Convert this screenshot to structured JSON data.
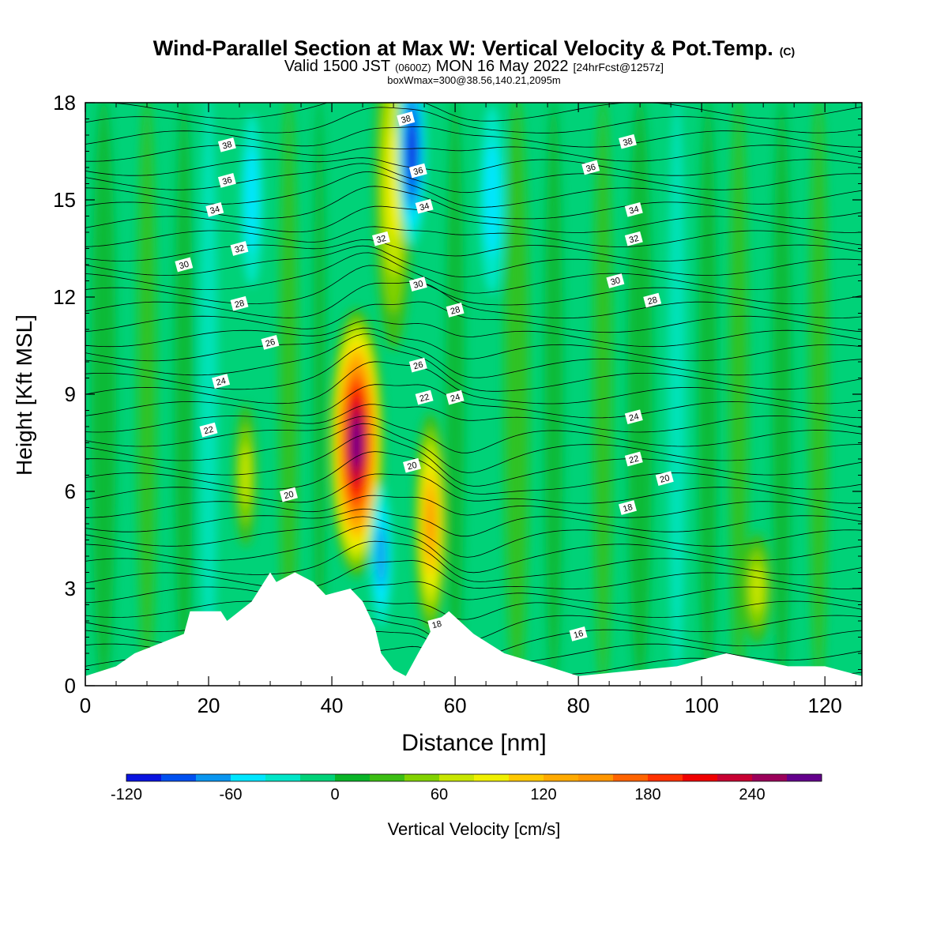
{
  "title": {
    "main": "Wind-Parallel Section at Max W: Vertical Velocity & Pot.Temp.",
    "copyright": "(C)",
    "valid_prefix": "Valid 1500 JST",
    "valid_z": "(0600Z)",
    "valid_date": "MON 16 May 2022",
    "fcst": "[24hrFcst@1257z]",
    "box": "boxWmax=300@38.56,140.21,2095m"
  },
  "chart_data": {
    "type": "heatmap",
    "xlabel": "Distance [nm]",
    "ylabel": "Height [Kft MSL]",
    "xlim": [
      0,
      126
    ],
    "ylim": [
      0,
      18
    ],
    "xticks": [
      "0",
      "20",
      "40",
      "60",
      "80",
      "100",
      "120"
    ],
    "xtick_values": [
      0,
      20,
      40,
      60,
      80,
      100,
      120
    ],
    "yticks": [
      "0",
      "3",
      "6",
      "9",
      "12",
      "15",
      "18"
    ],
    "ytick_values": [
      0,
      3,
      6,
      9,
      12,
      15,
      18
    ],
    "colorbar": {
      "label": "Vertical Velocity [cm/s]",
      "tick_labels": [
        "-120",
        "-60",
        "0",
        "60",
        "120",
        "180",
        "240"
      ],
      "tick_values": [
        -120,
        -60,
        0,
        60,
        120,
        180,
        240
      ],
      "bins": [
        -120,
        -100,
        -80,
        -60,
        -40,
        -20,
        0,
        20,
        40,
        60,
        80,
        100,
        120,
        140,
        160,
        180,
        200,
        220,
        240,
        260,
        280
      ],
      "colors": [
        "#0a14e0",
        "#0050f0",
        "#0a96f0",
        "#00e6ff",
        "#00e6c8",
        "#00d278",
        "#0ab428",
        "#3cbe14",
        "#82d200",
        "#c8e600",
        "#f0f000",
        "#ffc800",
        "#ffaa00",
        "#ff9600",
        "#ff6400",
        "#ff3200",
        "#f00000",
        "#c80032",
        "#9b005a",
        "#64008c"
      ]
    },
    "updraft_cores": [
      {
        "x": 44,
        "y": 7.5,
        "w": 290
      },
      {
        "x": 56,
        "y": 5.0,
        "w": 150
      },
      {
        "x": 50,
        "y": 15.5,
        "w": 90
      },
      {
        "x": 26,
        "y": 6.5,
        "w": 70
      },
      {
        "x": 109,
        "y": 3.0,
        "w": 60
      }
    ],
    "downdraft_cores": [
      {
        "x": 53,
        "y": 16.5,
        "w": -110
      },
      {
        "x": 48,
        "y": 4.0,
        "w": -60
      },
      {
        "x": 27,
        "y": 15.0,
        "w": -50
      },
      {
        "x": 66,
        "y": 15.0,
        "w": -40
      }
    ],
    "theta_contours": {
      "label_values": [
        16,
        18,
        20,
        22,
        24,
        26,
        28,
        30,
        32,
        34,
        36,
        38
      ],
      "labels": [
        "38",
        "36",
        "34",
        "32",
        "30",
        "28",
        "26",
        "24",
        "22",
        "20",
        "18",
        "16"
      ]
    },
    "terrain_top_kft": [
      {
        "x": 0,
        "h": 0.3
      },
      {
        "x": 5,
        "h": 0.6
      },
      {
        "x": 8,
        "h": 1.0
      },
      {
        "x": 12,
        "h": 1.3
      },
      {
        "x": 16,
        "h": 1.6
      },
      {
        "x": 17,
        "h": 2.3
      },
      {
        "x": 22,
        "h": 2.3
      },
      {
        "x": 23,
        "h": 2.0
      },
      {
        "x": 27,
        "h": 2.6
      },
      {
        "x": 29,
        "h": 3.2
      },
      {
        "x": 30,
        "h": 3.5
      },
      {
        "x": 31,
        "h": 3.2
      },
      {
        "x": 34,
        "h": 3.5
      },
      {
        "x": 37,
        "h": 3.2
      },
      {
        "x": 39,
        "h": 2.8
      },
      {
        "x": 43,
        "h": 3.0
      },
      {
        "x": 45,
        "h": 2.6
      },
      {
        "x": 47,
        "h": 1.8
      },
      {
        "x": 48,
        "h": 1.0
      },
      {
        "x": 50,
        "h": 0.5
      },
      {
        "x": 52,
        "h": 0.3
      },
      {
        "x": 54,
        "h": 1.0
      },
      {
        "x": 57,
        "h": 2.0
      },
      {
        "x": 59,
        "h": 2.3
      },
      {
        "x": 63,
        "h": 1.6
      },
      {
        "x": 68,
        "h": 1.0
      },
      {
        "x": 75,
        "h": 0.6
      },
      {
        "x": 80,
        "h": 0.3
      },
      {
        "x": 96,
        "h": 0.6
      },
      {
        "x": 104,
        "h": 1.0
      },
      {
        "x": 114,
        "h": 0.6
      },
      {
        "x": 118,
        "h": 0.6
      },
      {
        "x": 120,
        "h": 0.6
      },
      {
        "x": 126,
        "h": 0.3
      }
    ]
  }
}
